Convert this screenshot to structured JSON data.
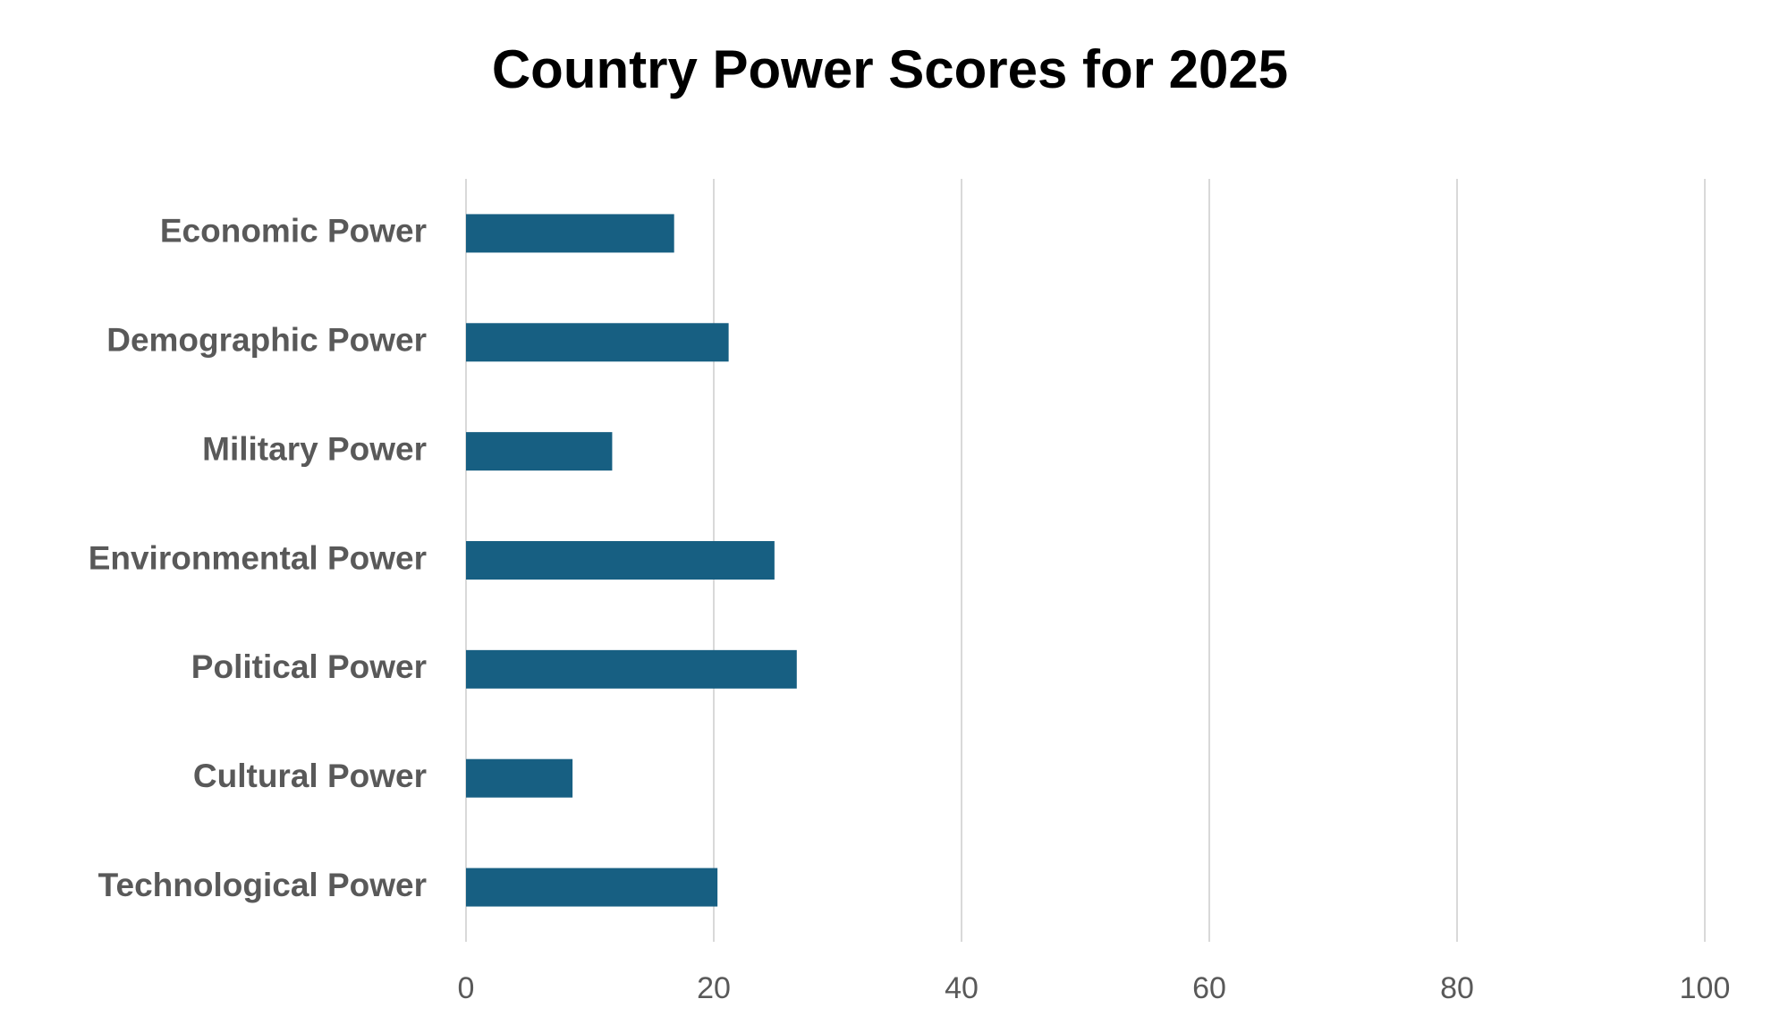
{
  "chart_data": {
    "type": "bar",
    "orientation": "horizontal",
    "title": "Country Power Scores for 2025",
    "categories": [
      "Economic Power",
      "Demographic Power",
      "Military Power",
      "Environmental Power",
      "Political Power",
      "Cultural Power",
      "Technological Power"
    ],
    "values": [
      16.8,
      21.2,
      11.8,
      24.9,
      26.7,
      8.6,
      20.3
    ],
    "color": "#175f82",
    "xlim": [
      0,
      100
    ],
    "xticks": [
      0,
      20,
      40,
      60,
      80,
      100
    ],
    "grid": true
  }
}
